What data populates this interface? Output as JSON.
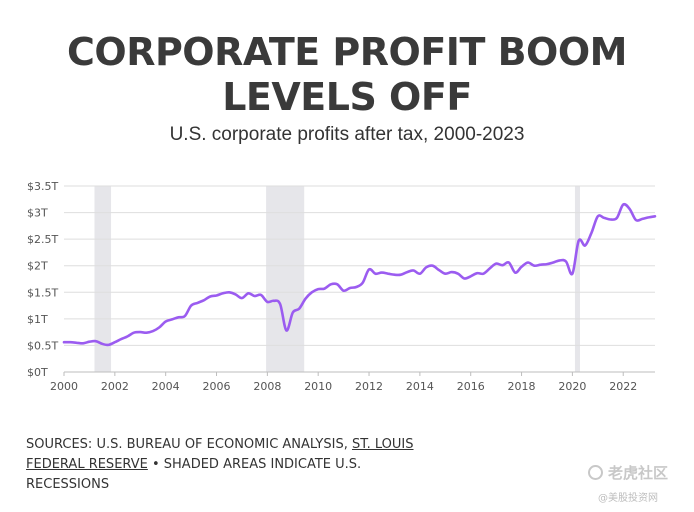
{
  "header": {
    "title_line1": "CORPORATE PROFIT BOOM",
    "title_line2": "LEVELS OFF",
    "subtitle": "U.S. corporate profits after tax, 2000-2023"
  },
  "footer": {
    "sources_text": "SOURCES: U.S. BUREAU OF ECONOMIC ANALYSIS, ",
    "sources_link": "ST. LOUIS FEDERAL RESERVE",
    "sources_note": " • SHADED AREAS INDICATE U.S. RECESSIONS"
  },
  "watermark": {
    "line1": "老虎社区",
    "line2": "@美股投资网"
  },
  "colors": {
    "line": "#9b5cf0",
    "recession": "#e6e6ea",
    "grid": "#dedede",
    "text": "#3a3a3a"
  },
  "chart_data": {
    "type": "line",
    "title": "CORPORATE PROFIT BOOM LEVELS OFF",
    "subtitle": "U.S. corporate profits after tax, 2000-2023",
    "xlabel": "",
    "ylabel": "",
    "xlim": [
      2000,
      2023.25
    ],
    "ylim": [
      0,
      3.5
    ],
    "y_ticks": [
      {
        "value": 0,
        "label": "$0T"
      },
      {
        "value": 0.5,
        "label": "$0.5T"
      },
      {
        "value": 1,
        "label": "$1T"
      },
      {
        "value": 1.5,
        "label": "$1.5T"
      },
      {
        "value": 2,
        "label": "$2T"
      },
      {
        "value": 2.5,
        "label": "$2.5T"
      },
      {
        "value": 3,
        "label": "$3T"
      },
      {
        "value": 3.5,
        "label": "$3.5T"
      }
    ],
    "x_ticks": [
      {
        "value": 2000,
        "label": "2000"
      },
      {
        "value": 2002,
        "label": "2002"
      },
      {
        "value": 2004,
        "label": "2004"
      },
      {
        "value": 2006,
        "label": "2006"
      },
      {
        "value": 2008,
        "label": "2008"
      },
      {
        "value": 2010,
        "label": "2010"
      },
      {
        "value": 2012,
        "label": "2012"
      },
      {
        "value": 2014,
        "label": "2014"
      },
      {
        "value": 2016,
        "label": "2016"
      },
      {
        "value": 2018,
        "label": "2018"
      },
      {
        "value": 2020,
        "label": "2020"
      },
      {
        "value": 2022,
        "label": "2022"
      }
    ],
    "grid": true,
    "recessions": [
      {
        "start": 2001.2,
        "end": 2001.85
      },
      {
        "start": 2007.95,
        "end": 2009.45
      },
      {
        "start": 2020.1,
        "end": 2020.3
      }
    ],
    "series": [
      {
        "name": "Corporate profits after tax",
        "x": [
          2000.0,
          2000.25,
          2000.5,
          2000.75,
          2001.0,
          2001.25,
          2001.5,
          2001.75,
          2002.0,
          2002.25,
          2002.5,
          2002.75,
          2003.0,
          2003.25,
          2003.5,
          2003.75,
          2004.0,
          2004.25,
          2004.5,
          2004.75,
          2005.0,
          2005.25,
          2005.5,
          2005.75,
          2006.0,
          2006.25,
          2006.5,
          2006.75,
          2007.0,
          2007.25,
          2007.5,
          2007.75,
          2008.0,
          2008.25,
          2008.5,
          2008.75,
          2009.0,
          2009.25,
          2009.5,
          2009.75,
          2010.0,
          2010.25,
          2010.5,
          2010.75,
          2011.0,
          2011.25,
          2011.5,
          2011.75,
          2012.0,
          2012.25,
          2012.5,
          2012.75,
          2013.0,
          2013.25,
          2013.5,
          2013.75,
          2014.0,
          2014.25,
          2014.5,
          2014.75,
          2015.0,
          2015.25,
          2015.5,
          2015.75,
          2016.0,
          2016.25,
          2016.5,
          2016.75,
          2017.0,
          2017.25,
          2017.5,
          2017.75,
          2018.0,
          2018.25,
          2018.5,
          2018.75,
          2019.0,
          2019.25,
          2019.5,
          2019.75,
          2020.0,
          2020.25,
          2020.5,
          2020.75,
          2021.0,
          2021.25,
          2021.5,
          2021.75,
          2022.0,
          2022.25,
          2022.5,
          2022.75,
          2023.0,
          2023.25
        ],
        "values": [
          0.56,
          0.56,
          0.55,
          0.54,
          0.57,
          0.58,
          0.53,
          0.51,
          0.56,
          0.62,
          0.67,
          0.74,
          0.75,
          0.74,
          0.77,
          0.84,
          0.95,
          0.99,
          1.03,
          1.05,
          1.25,
          1.3,
          1.35,
          1.42,
          1.44,
          1.48,
          1.5,
          1.46,
          1.39,
          1.48,
          1.43,
          1.45,
          1.32,
          1.34,
          1.28,
          0.78,
          1.12,
          1.19,
          1.38,
          1.5,
          1.56,
          1.57,
          1.65,
          1.65,
          1.53,
          1.58,
          1.6,
          1.68,
          1.93,
          1.85,
          1.87,
          1.85,
          1.83,
          1.83,
          1.88,
          1.91,
          1.85,
          1.97,
          2.0,
          1.92,
          1.85,
          1.88,
          1.85,
          1.76,
          1.8,
          1.86,
          1.85,
          1.95,
          2.04,
          2.01,
          2.06,
          1.87,
          1.98,
          2.06,
          2.0,
          2.02,
          2.03,
          2.06,
          2.1,
          2.08,
          1.85,
          2.47,
          2.38,
          2.62,
          2.93,
          2.9,
          2.87,
          2.9,
          3.15,
          3.07,
          2.86,
          2.88,
          2.91,
          2.93
        ]
      }
    ]
  }
}
